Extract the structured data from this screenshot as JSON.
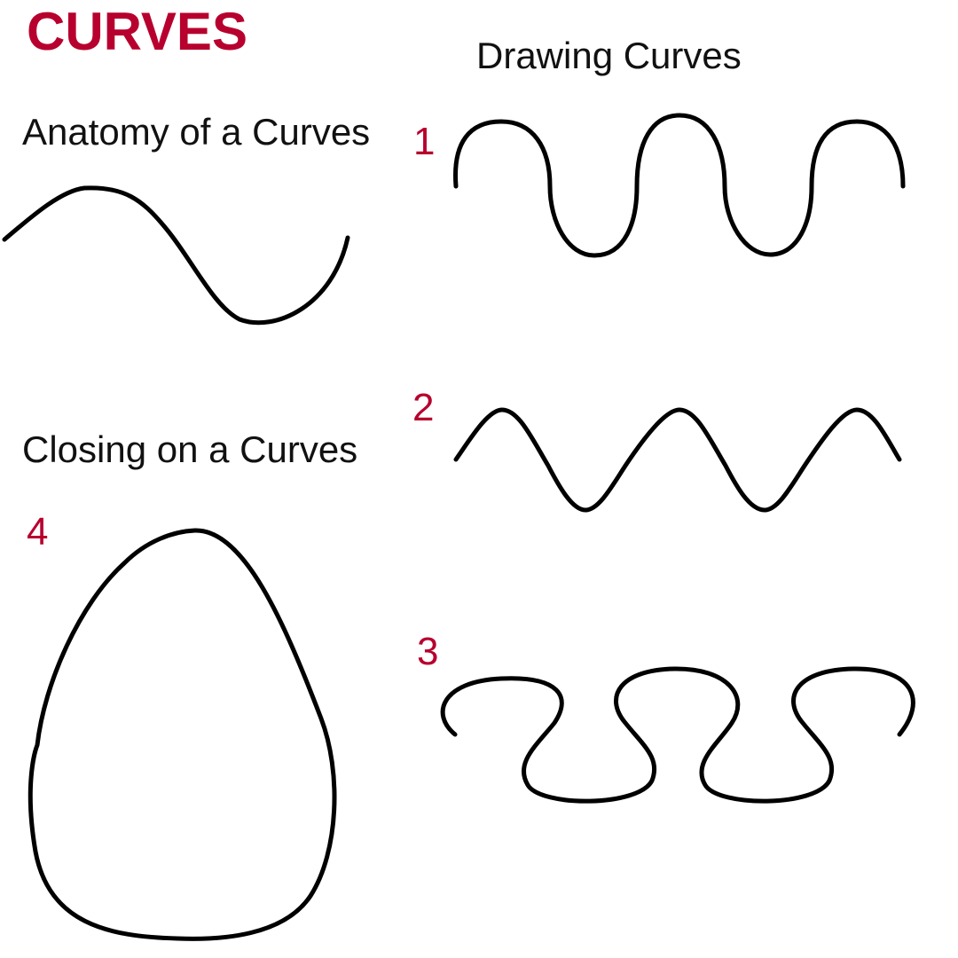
{
  "title": "CURVES",
  "headings": {
    "drawing": "Drawing Curves",
    "anatomy": "Anatomy of a Curves",
    "closing": "Closing on a Curves"
  },
  "numbers": {
    "one": "1",
    "two": "2",
    "three": "3",
    "four": "4"
  },
  "colors": {
    "accent": "#b7002e",
    "stroke": "#000000",
    "background": "#ffffff"
  }
}
